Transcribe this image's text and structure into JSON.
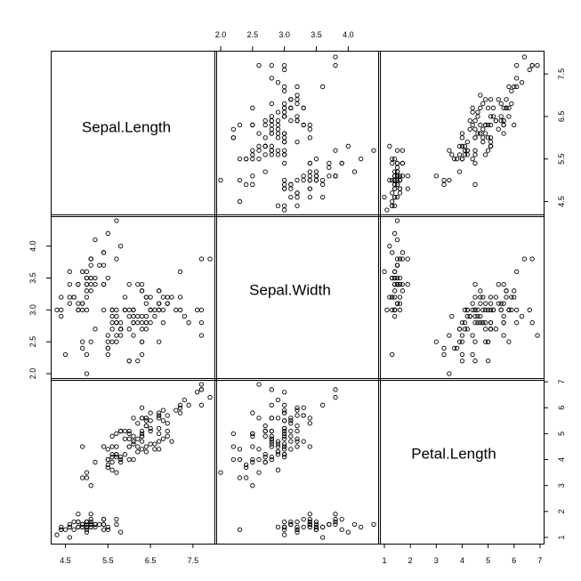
{
  "chart_data": {
    "type": "scatter",
    "variables": [
      "Sepal.Length",
      "Sepal.Width",
      "Petal.Length"
    ],
    "axes": {
      "Sepal.Length": {
        "ticks": [
          4.5,
          5.5,
          6.5,
          7.5
        ],
        "tick_labels": [
          "4.5",
          "5.5",
          "6.5",
          "7.5"
        ],
        "range": [
          4.3,
          7.9
        ]
      },
      "Sepal.Width": {
        "ticks": [
          2.0,
          2.5,
          3.0,
          3.5,
          4.0
        ],
        "tick_labels": [
          "2.0",
          "2.5",
          "3.0",
          "3.5",
          "4.0"
        ],
        "range": [
          2.0,
          4.4
        ]
      },
      "Petal.Length": {
        "ticks": [
          1,
          2,
          3,
          4,
          5,
          6,
          7
        ],
        "tick_labels": [
          "1",
          "2",
          "3",
          "4",
          "5",
          "6",
          "7"
        ],
        "range": [
          1.0,
          6.9
        ]
      }
    },
    "tick_placement": {
      "top": [
        "Sepal.Width"
      ],
      "right": [
        "Sepal.Length",
        "Petal.Length"
      ],
      "bottom": [
        "Sepal.Length",
        "Petal.Length"
      ],
      "left": [
        "Sepal.Width"
      ]
    },
    "observations": {
      "Sepal.Length": [
        5.1,
        4.9,
        4.7,
        4.6,
        5.0,
        5.4,
        4.6,
        5.0,
        4.4,
        4.9,
        5.4,
        4.8,
        4.8,
        4.3,
        5.8,
        5.7,
        5.4,
        5.1,
        5.7,
        5.1,
        5.4,
        5.1,
        4.6,
        5.1,
        4.8,
        5.0,
        5.0,
        5.2,
        5.2,
        4.7,
        4.8,
        5.4,
        5.2,
        5.5,
        4.9,
        5.0,
        5.5,
        4.9,
        4.4,
        5.1,
        5.0,
        4.5,
        4.4,
        5.0,
        5.1,
        4.8,
        5.1,
        4.6,
        5.3,
        5.0,
        7.0,
        6.4,
        6.9,
        5.5,
        6.5,
        5.7,
        6.3,
        4.9,
        6.6,
        5.2,
        5.0,
        5.9,
        6.0,
        6.1,
        5.6,
        6.7,
        5.6,
        5.8,
        6.2,
        5.6,
        5.9,
        6.1,
        6.3,
        6.1,
        6.4,
        6.6,
        6.8,
        6.7,
        6.0,
        5.7,
        5.5,
        5.5,
        5.8,
        6.0,
        5.4,
        6.0,
        6.7,
        6.3,
        5.6,
        5.5,
        5.5,
        6.1,
        5.8,
        5.0,
        5.6,
        5.7,
        5.7,
        6.2,
        5.1,
        5.7,
        6.3,
        5.8,
        7.1,
        6.3,
        6.5,
        7.6,
        4.9,
        7.3,
        6.7,
        7.2,
        6.5,
        6.4,
        6.8,
        5.7,
        5.8,
        6.4,
        6.5,
        7.7,
        7.7,
        6.0,
        6.9,
        5.6,
        7.7,
        6.3,
        6.7,
        7.2,
        6.2,
        6.1,
        6.4,
        7.2,
        7.4,
        7.9,
        6.4,
        6.3,
        6.1,
        7.7,
        6.3,
        6.4,
        6.0,
        6.9,
        6.7,
        6.9,
        5.8,
        6.8,
        6.7,
        6.7,
        6.3,
        6.5,
        6.2,
        5.9
      ],
      "Sepal.Width": [
        3.5,
        3.0,
        3.2,
        3.1,
        3.6,
        3.9,
        3.4,
        3.4,
        2.9,
        3.1,
        3.7,
        3.4,
        3.0,
        3.0,
        4.0,
        4.4,
        3.9,
        3.5,
        3.8,
        3.8,
        3.4,
        3.7,
        3.6,
        3.3,
        3.4,
        3.0,
        3.4,
        3.5,
        3.4,
        3.2,
        3.1,
        3.4,
        4.1,
        4.2,
        3.1,
        3.2,
        3.5,
        3.6,
        3.0,
        3.4,
        3.5,
        2.3,
        3.2,
        3.5,
        3.8,
        3.0,
        3.8,
        3.2,
        3.7,
        3.3,
        3.2,
        3.2,
        3.1,
        2.3,
        2.8,
        2.8,
        3.3,
        2.4,
        2.9,
        2.7,
        2.0,
        3.0,
        2.2,
        2.9,
        2.9,
        3.1,
        3.0,
        2.7,
        2.2,
        2.5,
        3.2,
        2.8,
        2.5,
        2.8,
        2.9,
        3.0,
        2.8,
        3.0,
        2.9,
        2.6,
        2.4,
        2.4,
        2.7,
        2.7,
        3.0,
        3.4,
        3.1,
        2.3,
        3.0,
        2.5,
        2.6,
        3.0,
        2.6,
        2.3,
        2.7,
        3.0,
        2.9,
        2.9,
        2.5,
        2.8,
        3.3,
        2.7,
        3.0,
        2.9,
        3.0,
        3.0,
        2.5,
        2.9,
        2.5,
        3.6,
        3.2,
        2.7,
        3.0,
        2.5,
        2.8,
        3.2,
        3.0,
        3.8,
        2.6,
        2.2,
        3.2,
        2.8,
        2.8,
        2.7,
        3.3,
        3.2,
        2.8,
        3.0,
        2.8,
        3.0,
        2.8,
        3.8,
        2.8,
        2.8,
        2.6,
        3.0,
        3.4,
        3.1,
        3.0,
        3.1,
        3.1,
        3.1,
        2.7,
        3.2,
        3.3,
        3.0,
        2.5,
        3.0,
        3.4,
        3.0
      ],
      "Petal.Length": [
        1.4,
        1.4,
        1.3,
        1.5,
        1.4,
        1.7,
        1.4,
        1.5,
        1.4,
        1.5,
        1.5,
        1.6,
        1.4,
        1.1,
        1.2,
        1.5,
        1.3,
        1.4,
        1.7,
        1.5,
        1.7,
        1.5,
        1.0,
        1.7,
        1.9,
        1.6,
        1.6,
        1.5,
        1.4,
        1.6,
        1.6,
        1.5,
        1.5,
        1.4,
        1.5,
        1.2,
        1.3,
        1.4,
        1.3,
        1.5,
        1.3,
        1.3,
        1.3,
        1.6,
        1.9,
        1.4,
        1.6,
        1.4,
        1.5,
        1.4,
        4.7,
        4.5,
        4.9,
        4.0,
        4.6,
        4.5,
        4.7,
        3.3,
        4.6,
        3.9,
        3.5,
        4.2,
        4.0,
        4.7,
        3.6,
        4.4,
        4.5,
        4.1,
        4.5,
        3.9,
        4.8,
        4.0,
        4.9,
        4.7,
        4.3,
        4.4,
        4.8,
        5.0,
        4.5,
        3.5,
        3.8,
        3.7,
        3.9,
        5.1,
        4.5,
        4.5,
        4.7,
        4.4,
        4.1,
        4.0,
        4.4,
        4.6,
        4.0,
        3.3,
        4.2,
        4.2,
        4.2,
        4.3,
        3.0,
        4.1,
        6.0,
        5.1,
        5.9,
        5.6,
        5.8,
        6.6,
        4.5,
        6.3,
        5.8,
        6.1,
        5.1,
        5.3,
        5.5,
        5.0,
        5.1,
        5.3,
        5.5,
        6.7,
        6.9,
        5.0,
        5.7,
        4.9,
        6.7,
        4.9,
        5.7,
        6.0,
        4.8,
        4.9,
        5.6,
        5.8,
        6.1,
        6.4,
        5.6,
        5.1,
        5.6,
        6.1,
        5.6,
        5.5,
        4.8,
        5.4,
        5.6,
        5.1,
        5.1,
        5.9,
        5.7,
        5.2,
        5.0,
        5.2,
        5.4,
        5.1
      ]
    }
  }
}
